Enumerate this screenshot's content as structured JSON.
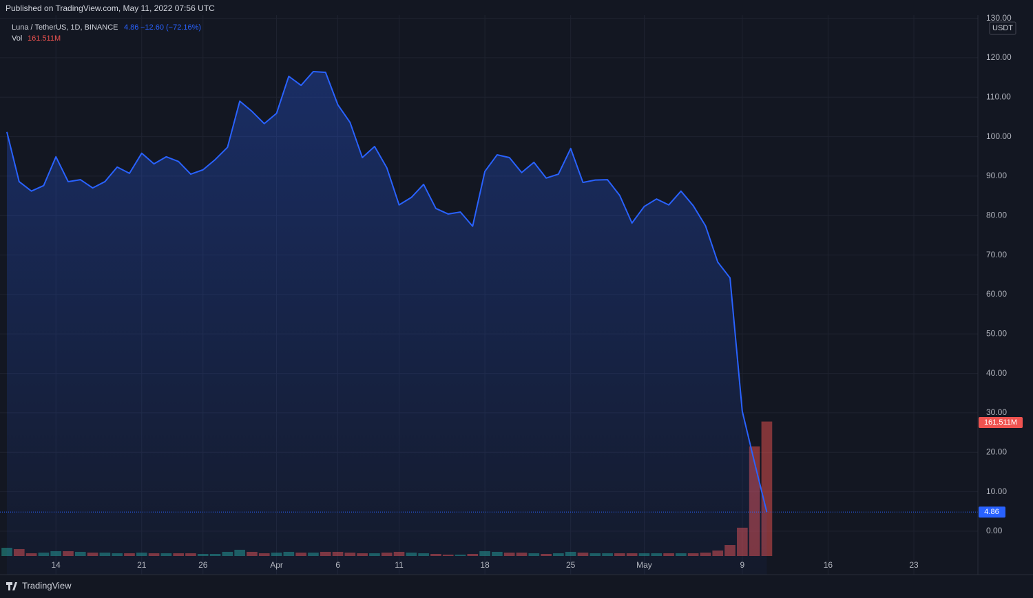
{
  "header": "Published on TradingView.com, May 11, 2022 07:56 UTC",
  "footer": "TradingView",
  "chart_data": {
    "type": "area",
    "symbol": "Luna / TetherUS, 1D, BINANCE",
    "change": "−12.60 (−72.16%)",
    "currency": "USDT",
    "volume_label": "Vol",
    "categories": [
      null,
      null,
      null,
      null,
      "14",
      null,
      null,
      null,
      null,
      null,
      null,
      "21",
      null,
      null,
      null,
      null,
      "26",
      null,
      null,
      null,
      null,
      null,
      "Apr",
      null,
      null,
      null,
      null,
      "6",
      null,
      null,
      null,
      null,
      "11",
      null,
      null,
      null,
      null,
      null,
      null,
      "18",
      null,
      null,
      null,
      null,
      null,
      null,
      "25",
      null,
      null,
      null,
      null,
      null,
      "May",
      null,
      null,
      null,
      null,
      null,
      null,
      null,
      "9",
      null,
      null,
      null,
      null,
      null,
      null,
      "16",
      null,
      null,
      null,
      null,
      null,
      null,
      "23",
      null,
      null,
      null,
      null,
      null
    ],
    "series": [
      {
        "name": "Luna / TetherUS",
        "color": "#2962ff",
        "values": [
          101.2,
          88.6,
          86.2,
          87.6,
          94.9,
          88.6,
          89.1,
          87.0,
          88.6,
          92.3,
          90.7,
          95.8,
          93.1,
          94.9,
          93.7,
          90.5,
          91.6,
          94.2,
          97.3,
          109.0,
          106.4,
          103.3,
          105.9,
          115.3,
          113.0,
          116.5,
          116.3,
          108.1,
          103.6,
          94.7,
          97.5,
          92.1,
          82.7,
          84.6,
          87.9,
          81.8,
          80.4,
          80.9,
          77.3,
          91.2,
          95.4,
          94.7,
          90.9,
          93.5,
          89.5,
          90.5,
          97.0,
          88.4,
          89.0,
          89.1,
          85.1,
          78.1,
          82.3,
          84.2,
          82.7,
          86.2,
          82.5,
          77.4,
          68.2,
          64.2,
          30.4,
          17.4,
          4.86,
          null,
          null,
          null,
          null,
          null,
          null,
          null,
          null,
          null,
          null,
          null,
          null,
          null,
          null,
          null,
          null,
          null
        ]
      },
      {
        "name": "Vol",
        "axis": "y2",
        "up_color": "#26a69a",
        "down_color": "#ef5350",
        "values": [
          9.9,
          8.3,
          3.3,
          4.1,
          5.8,
          5.8,
          5.0,
          4.1,
          4.1,
          3.3,
          3.3,
          4.1,
          3.3,
          3.3,
          3.3,
          3.3,
          2.5,
          2.5,
          5.0,
          7.5,
          5.0,
          3.3,
          4.1,
          5.0,
          4.1,
          4.1,
          5.0,
          5.0,
          4.1,
          3.3,
          3.3,
          4.1,
          5.0,
          4.1,
          3.3,
          2.5,
          1.7,
          1.7,
          2.5,
          5.8,
          5.0,
          4.1,
          4.1,
          3.3,
          2.5,
          3.3,
          5.0,
          4.1,
          3.3,
          3.3,
          3.3,
          3.3,
          3.3,
          3.3,
          3.3,
          3.3,
          3.3,
          4.1,
          6.6,
          13.2,
          34.0,
          131.7,
          161.511,
          null,
          null,
          null,
          null,
          null,
          null,
          null,
          null,
          null,
          null,
          null,
          null,
          null,
          null,
          null,
          null,
          null
        ],
        "value_labels": [
          null,
          null,
          null,
          null,
          null,
          null,
          null,
          null,
          null,
          null,
          null,
          null,
          null,
          null,
          null,
          null,
          null,
          null,
          null,
          null,
          null,
          null,
          null,
          null,
          null,
          null,
          null,
          null,
          null,
          null,
          null,
          null,
          null,
          null,
          null,
          null,
          null,
          null,
          null,
          null,
          null,
          null,
          null,
          null,
          null,
          null,
          null,
          null,
          null,
          null,
          null,
          null,
          null,
          null,
          null,
          null,
          null,
          null,
          null,
          null,
          null,
          null,
          "161.511M",
          null,
          null,
          null,
          null,
          null,
          null,
          null,
          null,
          null,
          null,
          null,
          null,
          null,
          null,
          null,
          null,
          null
        ]
      }
    ],
    "ylim": [
      -11,
      130.8
    ],
    "yticks": [
      {
        "value": 0,
        "label": "0.00"
      },
      {
        "value": 10,
        "label": "10.00"
      },
      {
        "value": 20,
        "label": "20.00"
      },
      {
        "value": 30,
        "label": "30.00"
      },
      {
        "value": 40,
        "label": "40.00"
      },
      {
        "value": 50,
        "label": "50.00"
      },
      {
        "value": 60,
        "label": "60.00"
      },
      {
        "value": 70,
        "label": "70.00"
      },
      {
        "value": 80,
        "label": "80.00"
      },
      {
        "value": 90,
        "label": "90.00"
      },
      {
        "value": 100,
        "label": "100.00"
      },
      {
        "value": 110,
        "label": "110.00"
      },
      {
        "value": 120,
        "label": "120.00"
      },
      {
        "value": 130,
        "label": "130.00"
      }
    ],
    "y2lim": [
      0,
      200
    ],
    "grid": true
  }
}
